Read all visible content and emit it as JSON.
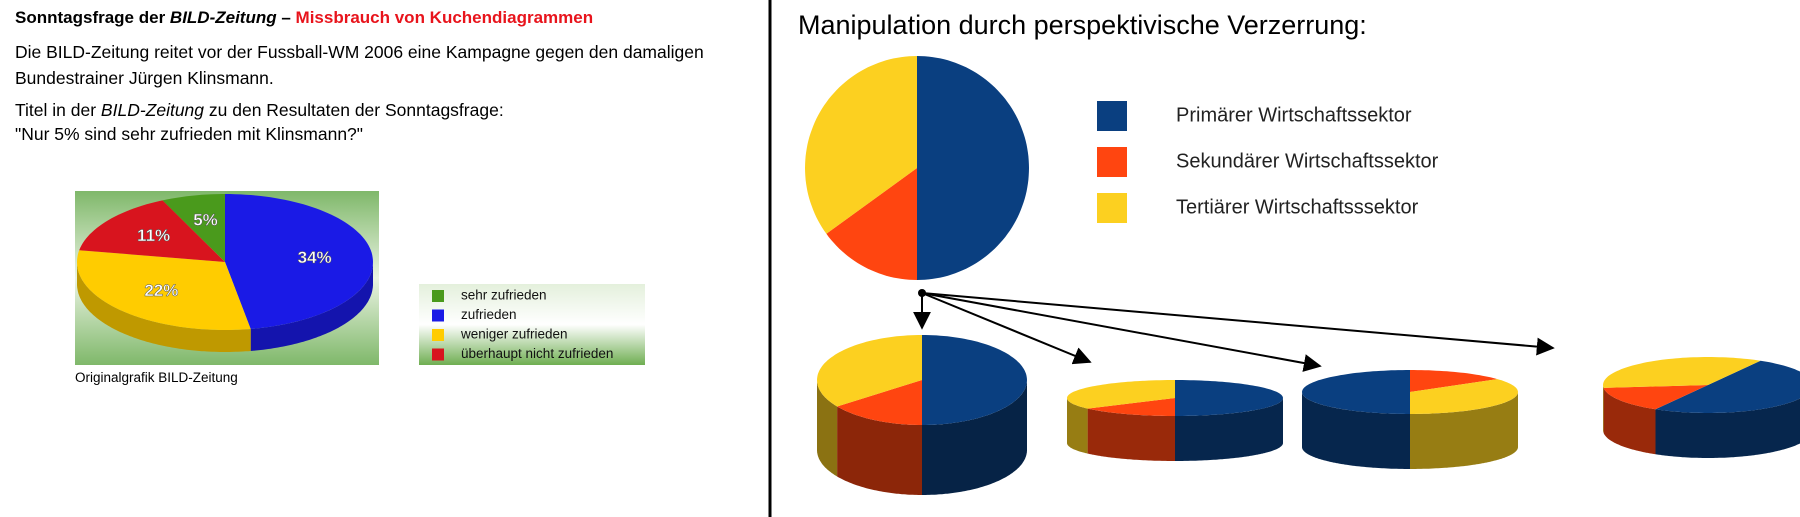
{
  "left_panel": {
    "title_prefix": "Sonntagsfrage der ",
    "title_em": "BILD-Zeitung",
    "title_dash": " – ",
    "title_highlight": "Missbrauch von Kuchendiagrammen",
    "paragraph": "Die BILD-Zeitung reitet vor der Fussball-WM 2006 eine Kampagne gegen den damaligen Bundestrainer Jürgen Klinsmann.",
    "intro_prefix": "Titel in der ",
    "intro_em": "BILD-Zeitung",
    "intro_suffix": " zu den Resultaten der Sonntagsfrage:",
    "quote": "\"Nur 5% sind sehr zufrieden mit Klinsmann?\"",
    "caption": "Originalgrafik BILD-Zeitung"
  },
  "right_panel": {
    "title": "Manipulation durch perspektivische Verzerrung:"
  },
  "chart_data": [
    {
      "type": "pie",
      "categories": [
        "sehr zufrieden",
        "zufrieden",
        "weniger zufrieden",
        "überhaupt nicht zufrieden"
      ],
      "values": [
        5,
        34,
        22,
        11
      ],
      "value_labels": [
        "5%",
        "34%",
        "22%",
        "11%"
      ],
      "colors": [
        "#4a9a1c",
        "#1a1ae6",
        "#ffcc00",
        "#d8141e"
      ]
    },
    {
      "type": "pie",
      "categories": [
        "Primärer Wirtschaftssektor",
        "Sekundärer Wirtschaftssektor",
        "Tertiärer Wirtschaftsssektor"
      ],
      "values": [
        50,
        15,
        35
      ],
      "colors": [
        "#0a3f80",
        "#ff4510",
        "#fcd020"
      ]
    }
  ]
}
